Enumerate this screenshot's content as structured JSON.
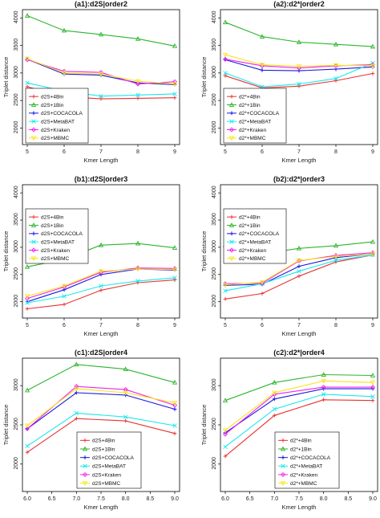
{
  "colors": {
    "4Bin": "#e8332f",
    "1Bin": "#2db52d",
    "COCACOLA": "#1a1adf",
    "MetaBAT": "#18e8f0",
    "Kraken": "#f020f0",
    "MBMC": "#f6e616"
  },
  "chart_data": [
    {
      "type": "line",
      "title": "(a1):d2S|order2",
      "xlabel": "Kmer Length",
      "ylabel": "Triplet distance",
      "x": [
        5,
        6,
        7,
        8,
        9
      ],
      "xticks": [
        "5",
        "6",
        "7",
        "8",
        "9"
      ],
      "yticks": [
        "2000",
        "2500",
        "3000",
        "3500",
        "4000"
      ],
      "xlim": [
        5,
        9
      ],
      "ylim": [
        1700,
        4150
      ],
      "legend_position": "bottom-left",
      "series": [
        {
          "name": "d2S+4Bin",
          "key": "4Bin",
          "values": [
            2750,
            2570,
            2530,
            2540,
            2550
          ]
        },
        {
          "name": "d2S+1Bin",
          "key": "1Bin",
          "values": [
            4040,
            3770,
            3700,
            3620,
            3490
          ]
        },
        {
          "name": "d2S+COCACOLA",
          "key": "COCACOLA",
          "values": [
            3250,
            2980,
            2960,
            2820,
            2790
          ]
        },
        {
          "name": "d2S+MetaBAT",
          "key": "MetaBAT",
          "values": [
            2820,
            2670,
            2580,
            2600,
            2620
          ]
        },
        {
          "name": "d2S+Kraken",
          "key": "Kraken",
          "values": [
            3240,
            3030,
            3010,
            2800,
            2840
          ]
        },
        {
          "name": "d2S+MBMC",
          "key": "MBMC",
          "values": [
            3260,
            3000,
            2980,
            2850,
            2800
          ]
        }
      ]
    },
    {
      "type": "line",
      "title": "(a2):d2*|order2",
      "xlabel": "Kmer Length",
      "ylabel": "Triplet distance",
      "x": [
        5,
        6,
        7,
        8,
        9
      ],
      "xticks": [
        "5",
        "6",
        "7",
        "8",
        "9"
      ],
      "yticks": [
        "2000",
        "2500",
        "3000",
        "3500",
        "4000"
      ],
      "xlim": [
        5,
        9
      ],
      "ylim": [
        1700,
        4150
      ],
      "legend_position": "bottom-left",
      "series": [
        {
          "name": "d2*+4Bin",
          "key": "4Bin",
          "values": [
            2950,
            2730,
            2760,
            2860,
            2990
          ]
        },
        {
          "name": "d2*+1Bin",
          "key": "1Bin",
          "values": [
            3920,
            3660,
            3560,
            3520,
            3480
          ]
        },
        {
          "name": "d2*+COCACOLA",
          "key": "COCACOLA",
          "values": [
            3240,
            3050,
            3040,
            3070,
            3110
          ]
        },
        {
          "name": "d2*+MetaBAT",
          "key": "MetaBAT",
          "values": [
            3000,
            2750,
            2800,
            2900,
            3180
          ]
        },
        {
          "name": "d2*+Kraken",
          "key": "Kraken",
          "values": [
            3250,
            3130,
            3090,
            3130,
            3150
          ]
        },
        {
          "name": "d2*+MBMC",
          "key": "MBMC",
          "values": [
            3330,
            3150,
            3120,
            3140,
            3130
          ]
        }
      ]
    },
    {
      "type": "line",
      "title": "(b1):d2S|order3",
      "xlabel": "Kmer Length",
      "ylabel": "Triplet distance",
      "x": [
        5,
        6,
        7,
        8,
        9
      ],
      "xticks": [
        "5",
        "6",
        "7",
        "8",
        "9"
      ],
      "yticks": [
        "2000",
        "2500",
        "3000",
        "3500",
        "4000"
      ],
      "xlim": [
        5,
        9
      ],
      "ylim": [
        1700,
        4150
      ],
      "legend_position": "top-left",
      "series": [
        {
          "name": "d2S+4Bin",
          "key": "4Bin",
          "values": [
            1870,
            1950,
            2210,
            2350,
            2400
          ]
        },
        {
          "name": "d2S+1Bin",
          "key": "1Bin",
          "values": [
            2640,
            2780,
            3040,
            3070,
            2990
          ]
        },
        {
          "name": "d2S+COCACOLA",
          "key": "COCACOLA",
          "values": [
            2000,
            2220,
            2500,
            2600,
            2580
          ]
        },
        {
          "name": "d2S+MetaBAT",
          "key": "MetaBAT",
          "values": [
            1980,
            2100,
            2290,
            2380,
            2440
          ]
        },
        {
          "name": "d2S+Kraken",
          "key": "Kraken",
          "values": [
            2060,
            2270,
            2540,
            2620,
            2610
          ]
        },
        {
          "name": "d2S+MBMC",
          "key": "MBMC",
          "values": [
            2100,
            2290,
            2560,
            2600,
            2590
          ]
        }
      ]
    },
    {
      "type": "line",
      "title": "(b2):d2*|order3",
      "xlabel": "Kmer Length",
      "ylabel": "Triplet distance",
      "x": [
        5,
        6,
        7,
        8,
        9
      ],
      "xticks": [
        "5",
        "6",
        "7",
        "8",
        "9"
      ],
      "yticks": [
        "2000",
        "2500",
        "3000",
        "3500",
        "4000"
      ],
      "xlim": [
        5,
        9
      ],
      "ylim": [
        1700,
        4150
      ],
      "legend_position": "top-left",
      "series": [
        {
          "name": "d2*+4Bin",
          "key": "4Bin",
          "values": [
            2050,
            2150,
            2470,
            2730,
            2860
          ]
        },
        {
          "name": "d2*+1Bin",
          "key": "1Bin",
          "values": [
            3040,
            2880,
            2980,
            3030,
            3100
          ]
        },
        {
          "name": "d2*+COCACOLA",
          "key": "COCACOLA",
          "values": [
            2300,
            2320,
            2650,
            2810,
            2880
          ]
        },
        {
          "name": "d2*+MetaBAT",
          "key": "MetaBAT",
          "values": [
            2200,
            2330,
            2560,
            2760,
            2860
          ]
        },
        {
          "name": "d2*+Kraken",
          "key": "Kraken",
          "values": [
            2330,
            2340,
            2750,
            2850,
            2900
          ]
        },
        {
          "name": "d2*+MBMC",
          "key": "MBMC",
          "values": [
            2310,
            2360,
            2760,
            2830,
            2880
          ]
        }
      ]
    },
    {
      "type": "line",
      "title": "(c1):d2S|order4",
      "xlabel": "Kmer Length",
      "ylabel": "Triplet distance",
      "x": [
        6,
        7,
        8,
        9
      ],
      "xticks": [
        "6.0",
        "6.5",
        "7.0",
        "7.5",
        "8.0",
        "8.5",
        "9.0"
      ],
      "ytick_values": [
        2000,
        2500,
        3000
      ],
      "yticks": [
        "2000",
        "2500",
        "3000"
      ],
      "xlim": [
        6,
        9
      ],
      "ylim": [
        1650,
        3350
      ],
      "legend_position": "bottom-center",
      "series": [
        {
          "name": "d2S+4Bin",
          "key": "4Bin",
          "values": [
            2150,
            2580,
            2550,
            2390
          ]
        },
        {
          "name": "d2S+1Bin",
          "key": "1Bin",
          "values": [
            2940,
            3270,
            3210,
            3040
          ]
        },
        {
          "name": "d2S+COCACOLA",
          "key": "COCACOLA",
          "values": [
            2450,
            2910,
            2880,
            2700
          ]
        },
        {
          "name": "d2S+MetaBAT",
          "key": "MetaBAT",
          "values": [
            2230,
            2650,
            2600,
            2490
          ]
        },
        {
          "name": "d2S+Kraken",
          "key": "Kraken",
          "values": [
            2450,
            2990,
            2950,
            2750
          ]
        },
        {
          "name": "d2S+MBMC",
          "key": "MBMC",
          "values": [
            2490,
            2960,
            2910,
            2780
          ]
        }
      ]
    },
    {
      "type": "line",
      "title": "(c2):d2*|order4",
      "xlabel": "Kmer Length",
      "ylabel": "Triplet distance",
      "x": [
        6,
        7,
        8,
        9
      ],
      "xticks": [
        "6.0",
        "6.5",
        "7.0",
        "7.5",
        "8.0",
        "8.5",
        "9.0"
      ],
      "ytick_values": [
        2000,
        2500,
        3000
      ],
      "yticks": [
        "2000",
        "2500",
        "3000"
      ],
      "xlim": [
        6,
        9
      ],
      "ylim": [
        1650,
        3350
      ],
      "legend_position": "bottom-center",
      "series": [
        {
          "name": "d2*+4Bin",
          "key": "4Bin",
          "values": [
            2100,
            2620,
            2820,
            2810
          ]
        },
        {
          "name": "d2*+1Bin",
          "key": "1Bin",
          "values": [
            2810,
            3040,
            3140,
            3130
          ]
        },
        {
          "name": "d2*+COCACOLA",
          "key": "COCACOLA",
          "values": [
            2400,
            2830,
            2960,
            2960
          ]
        },
        {
          "name": "d2*+MetaBAT",
          "key": "MetaBAT",
          "values": [
            2220,
            2700,
            2890,
            2860
          ]
        },
        {
          "name": "d2*+Kraken",
          "key": "Kraken",
          "values": [
            2380,
            2890,
            2980,
            2980
          ]
        },
        {
          "name": "d2*+MBMC",
          "key": "MBMC",
          "values": [
            2430,
            2910,
            3060,
            3040
          ]
        }
      ]
    }
  ]
}
